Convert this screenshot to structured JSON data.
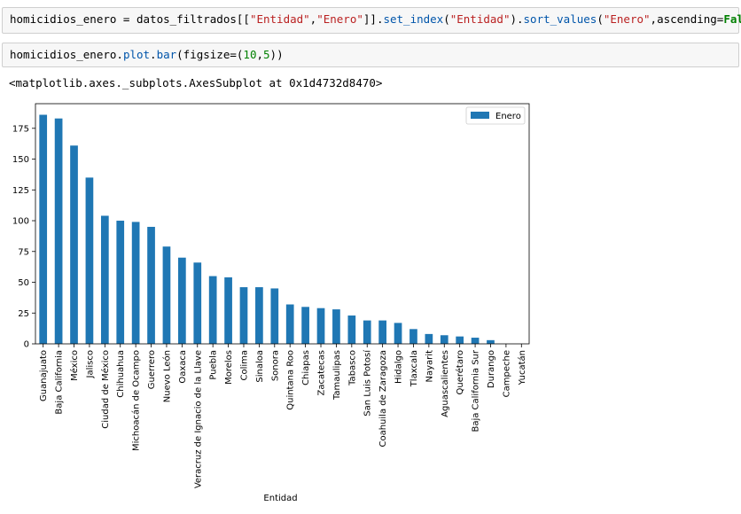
{
  "cells": {
    "cell1": {
      "parts": [
        {
          "t": "homicidios_enero = datos_filtrados[[",
          "c": "k"
        },
        {
          "t": "\"Entidad\"",
          "c": "s"
        },
        {
          "t": ",",
          "c": "k"
        },
        {
          "t": "\"Enero\"",
          "c": "s"
        },
        {
          "t": "]].",
          "c": "k"
        },
        {
          "t": "set_index",
          "c": "f"
        },
        {
          "t": "(",
          "c": "k"
        },
        {
          "t": "\"Entidad\"",
          "c": "s"
        },
        {
          "t": ").",
          "c": "k"
        },
        {
          "t": "sort_values",
          "c": "f"
        },
        {
          "t": "(",
          "c": "k"
        },
        {
          "t": "\"Enero\"",
          "c": "s"
        },
        {
          "t": ",ascending=",
          "c": "k"
        },
        {
          "t": "False",
          "c": "kw"
        },
        {
          "t": ")",
          "c": "k"
        }
      ]
    },
    "cell2": {
      "parts": [
        {
          "t": "homicidios_enero.",
          "c": "k"
        },
        {
          "t": "plot",
          "c": "f"
        },
        {
          "t": ".",
          "c": "k"
        },
        {
          "t": "bar",
          "c": "f"
        },
        {
          "t": "(figsize=(",
          "c": "k"
        },
        {
          "t": "10",
          "c": "num"
        },
        {
          "t": ",",
          "c": "k"
        },
        {
          "t": "5",
          "c": "num"
        },
        {
          "t": "))",
          "c": "k"
        }
      ]
    }
  },
  "output": {
    "text": "<matplotlib.axes._subplots.AxesSubplot at 0x1d4732d8470>"
  },
  "colors": {
    "bar": "#1f77b4"
  },
  "chart_data": {
    "type": "bar",
    "title": "",
    "xlabel": "Entidad",
    "ylabel": "",
    "ylim": [
      0,
      195
    ],
    "yticks": [
      0,
      25,
      50,
      75,
      100,
      125,
      150,
      175
    ],
    "legend": "top-right",
    "categories": [
      "Guanajuato",
      "Baja California",
      "México",
      "Jalisco",
      "Ciudad de México",
      "Chihuahua",
      "Michoacán de Ocampo",
      "Guerrero",
      "Nuevo León",
      "Oaxaca",
      "Veracruz de Ignacio de la Llave",
      "Puebla",
      "Morelos",
      "Colima",
      "Sinaloa",
      "Sonora",
      "Quintana Roo",
      "Chiapas",
      "Zacatecas",
      "Tamaulipas",
      "Tabasco",
      "San Luis Potosí",
      "Coahuila de Zaragoza",
      "Hidalgo",
      "Tlaxcala",
      "Nayarit",
      "Aguascalientes",
      "Querétaro",
      "Baja California Sur",
      "Durango",
      "Campeche",
      "Yucatán"
    ],
    "series": [
      {
        "name": "Enero",
        "values": [
          186,
          183,
          161,
          135,
          104,
          100,
          99,
          95,
          79,
          70,
          66,
          55,
          54,
          46,
          46,
          45,
          32,
          30,
          29,
          28,
          23,
          19,
          19,
          17,
          12,
          8,
          7,
          6,
          5,
          3,
          0,
          0
        ]
      }
    ]
  }
}
